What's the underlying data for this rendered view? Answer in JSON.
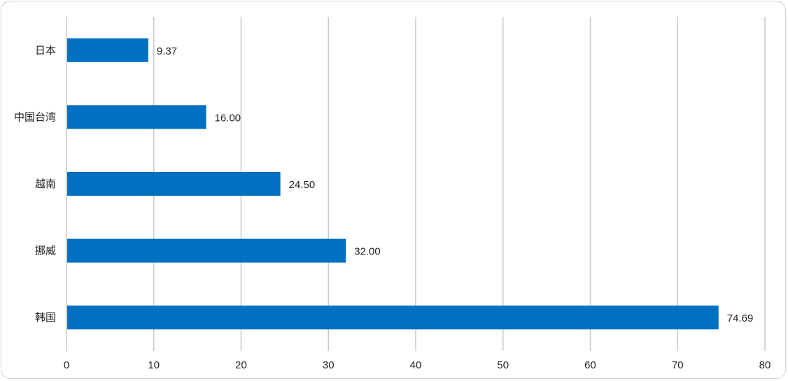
{
  "chart_data": {
    "type": "bar",
    "orientation": "horizontal",
    "categories": [
      "日本",
      "中国台湾",
      "越南",
      "挪威",
      "韩国"
    ],
    "values": [
      9.37,
      16.0,
      24.5,
      32.0,
      74.69
    ],
    "value_labels": [
      "9.37",
      "16.00",
      "24.50",
      "32.00",
      "74.69"
    ],
    "title": "",
    "xlabel": "",
    "ylabel": "",
    "xlim": [
      0,
      80
    ],
    "xticks": [
      0,
      10,
      20,
      30,
      40,
      50,
      60,
      70,
      80
    ],
    "grid": "vertical",
    "legend": "none",
    "bar_color": "#0070c0",
    "grid_color": "#c8c8c8"
  }
}
